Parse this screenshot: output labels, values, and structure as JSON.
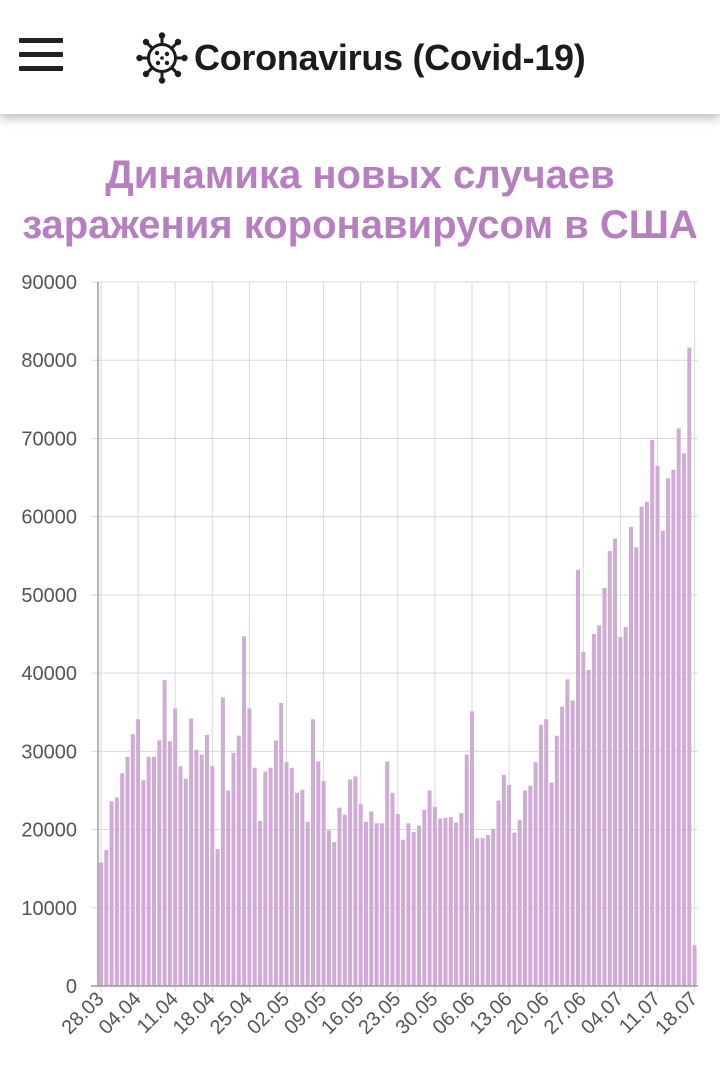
{
  "app_bar": {
    "title": "Coronavirus (Covid-19)",
    "menu_icon": "menu-icon",
    "logo_icon": "virus-icon"
  },
  "colors": {
    "bar": "#d0abd6",
    "title": "#b67fc0",
    "grid": "#d9d9d9",
    "axis": "#9a9a9a",
    "tick_text": "#555555"
  },
  "chart_data": {
    "type": "bar",
    "title": "Динамика новых случаев заражения коронавирусом в США",
    "title_lines": [
      "Динамика новых случаев",
      "заражения коронавирусом в США"
    ],
    "xlabel": "",
    "ylabel": "",
    "ylim": [
      0,
      90000
    ],
    "yticks": [
      0,
      10000,
      20000,
      30000,
      40000,
      50000,
      60000,
      70000,
      80000,
      90000
    ],
    "grid": true,
    "legend": "none",
    "start_date": "28.03",
    "tick_labels": [
      "28.03",
      "04.04",
      "11.04",
      "18.04",
      "25.04",
      "02.05",
      "09.05",
      "16.05",
      "23.05",
      "30.05",
      "06.06",
      "13.06",
      "20.06",
      "27.06",
      "04.07",
      "11.07",
      "18.07"
    ],
    "values": [
      15800,
      17400,
      23600,
      24100,
      27200,
      29300,
      32200,
      34100,
      26300,
      29300,
      29300,
      31400,
      39100,
      31300,
      35500,
      28100,
      26500,
      34200,
      30200,
      29600,
      32100,
      28100,
      17500,
      36900,
      25000,
      29800,
      32000,
      44700,
      35500,
      27900,
      21100,
      27400,
      27900,
      31400,
      36200,
      28600,
      27900,
      24700,
      25100,
      21000,
      34100,
      28700,
      26200,
      19900,
      18400,
      22800,
      21900,
      26400,
      26800,
      23300,
      21000,
      22300,
      20800,
      20800,
      28700,
      24700,
      22000,
      18700,
      20800,
      19700,
      20500,
      22500,
      25000,
      22900,
      21400,
      21500,
      21600,
      20900,
      22100,
      29600,
      35100,
      18900,
      18900,
      19300,
      20100,
      23700,
      27000,
      25700,
      19600,
      21200,
      25000,
      25600,
      28600,
      33400,
      34100,
      26000,
      32000,
      35700,
      39200,
      36500,
      53200,
      42700,
      40400,
      45000,
      46100,
      50900,
      55600,
      57200,
      44600,
      45900,
      58700,
      56100,
      61300,
      61900,
      69800,
      66500,
      58200,
      64900,
      66000,
      71300,
      68100,
      81600,
      5200
    ]
  }
}
